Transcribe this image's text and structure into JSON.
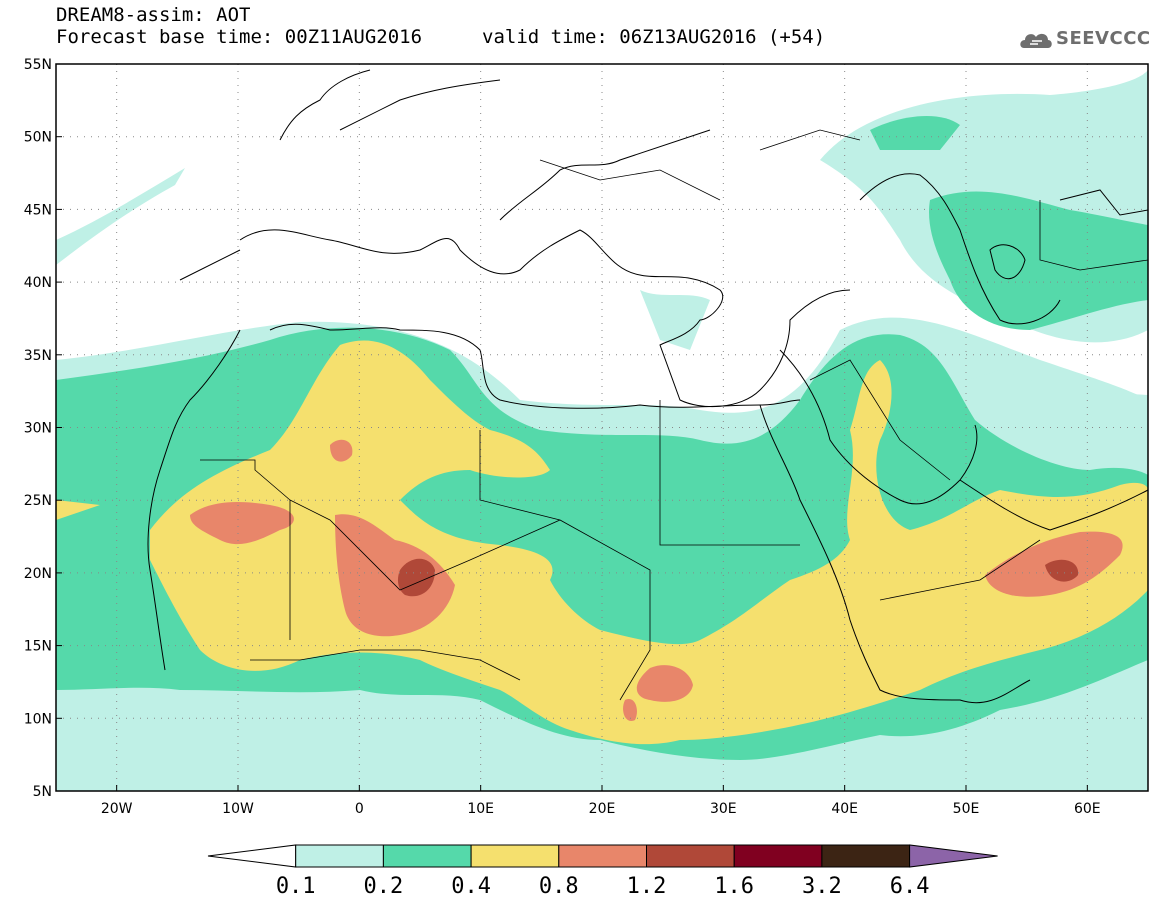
{
  "header": {
    "title": "DREAM8-assim: AOT",
    "forecast_base": "Forecast base time: 00Z11AUG2016",
    "valid_time": "valid time: 06Z13AUG2016 (+54)"
  },
  "logo": {
    "text": "SEEVCCC",
    "icon": "cloud-icon"
  },
  "map": {
    "lon_range": [
      -25,
      65
    ],
    "lat_range": [
      5,
      55
    ],
    "lon_ticks": [
      "20W",
      "10W",
      "0",
      "10E",
      "20E",
      "30E",
      "40E",
      "50E",
      "60E"
    ],
    "lat_ticks": [
      "55N",
      "50N",
      "45N",
      "40N",
      "35N",
      "30N",
      "25N",
      "20N",
      "15N",
      "10N",
      "5N"
    ],
    "grid": "dotted"
  },
  "colorbar": {
    "labels": [
      "0.1",
      "0.2",
      "0.4",
      "0.8",
      "1.2",
      "1.6",
      "3.2",
      "6.4"
    ],
    "colors": [
      "#ffffff",
      "#bff0e6",
      "#55d9aa",
      "#f5e06e",
      "#e8866a",
      "#b04838",
      "#800020",
      "#3c2414",
      "#8c64a8"
    ]
  },
  "colors": {
    "level_01": "#bff0e6",
    "level_02": "#55d9aa",
    "level_04": "#f5e06e",
    "level_08": "#e8866a",
    "level_12": "#b04838",
    "border": "#000000"
  }
}
